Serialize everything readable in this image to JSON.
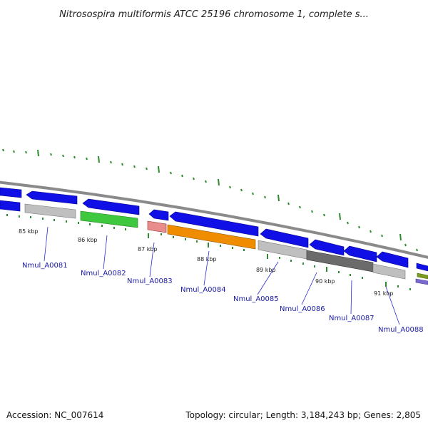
{
  "title": "Nitrosospira multiformis ATCC 25196 chromosome 1, complete s...",
  "footer": {
    "accession": "Accession: NC_007614",
    "summary": "Topology: circular; Length: 3,184,243 bp; Genes: 2,805"
  },
  "colors": {
    "blue_gene": "#1010e6",
    "gray_gene": "#bfbfbf",
    "dark_gray_gene": "#6b6b6b",
    "green_gene": "#3ec83e",
    "orange_gene": "#f08c00",
    "pink_gene": "#e88c8c",
    "olive_gene": "#7a9a20",
    "purple_gene": "#7a6ad0",
    "backbone": "#8a8a8a",
    "tick": "#2e8b2e",
    "label": "#1a1aa6"
  },
  "kbp_labels": [
    "85 kbp",
    "86 kbp",
    "87 kbp",
    "88 kbp",
    "89 kbp",
    "90 kbp",
    "91 kbp"
  ],
  "gene_labels": [
    "Nmul_A0081",
    "Nmul_A0082",
    "Nmul_A0083",
    "Nmul_A0084",
    "Nmul_A0085",
    "Nmul_A0086",
    "Nmul_A0087",
    "Nmul_A0088"
  ]
}
